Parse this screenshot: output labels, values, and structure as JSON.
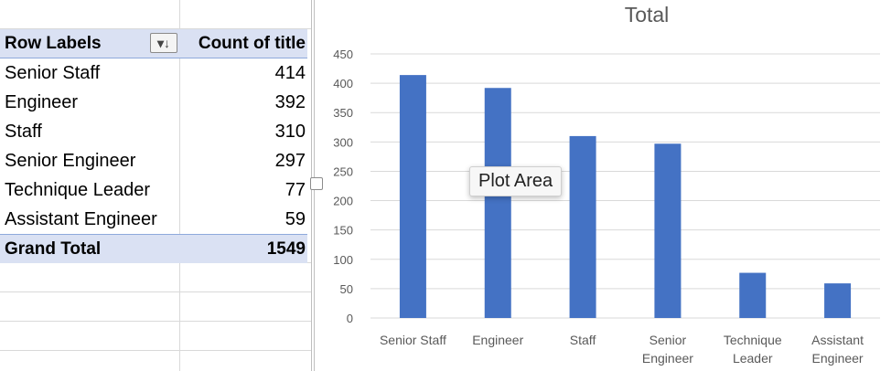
{
  "pivot": {
    "header": {
      "row_labels": "Row Labels",
      "value_header": "Count of title"
    },
    "rows": [
      {
        "label": "Senior Staff",
        "value": "414"
      },
      {
        "label": "Engineer",
        "value": "392"
      },
      {
        "label": "Staff",
        "value": "310"
      },
      {
        "label": "Senior Engineer",
        "value": "297"
      },
      {
        "label": "Technique Leader",
        "value": "77"
      },
      {
        "label": "Assistant Engineer",
        "value": "59"
      }
    ],
    "grand_total": {
      "label": "Grand Total",
      "value": "1549"
    },
    "filter_icon": "sort-filter-dropdown-icon"
  },
  "tooltip": {
    "text": "Plot Area"
  },
  "chart_data": {
    "type": "bar",
    "title": "Total",
    "categories": [
      "Senior Staff",
      "Engineer",
      "Staff",
      "Senior Engineer",
      "Technique Leader",
      "Assistant Engineer"
    ],
    "category_tick_labels": [
      [
        "Senior Staff"
      ],
      [
        "Engineer"
      ],
      [
        "Staff"
      ],
      [
        "Senior",
        "Engineer"
      ],
      [
        "Technique",
        "Leader"
      ],
      [
        "Assistant",
        "Engineer"
      ]
    ],
    "values": [
      414,
      392,
      310,
      297,
      77,
      59
    ],
    "ylim": [
      0,
      450
    ],
    "yticks": [
      0,
      50,
      100,
      150,
      200,
      250,
      300,
      350,
      400,
      450
    ],
    "grid": true,
    "legend": "none",
    "bar_color": "#4472c4",
    "grid_color": "#d9d9d9"
  }
}
